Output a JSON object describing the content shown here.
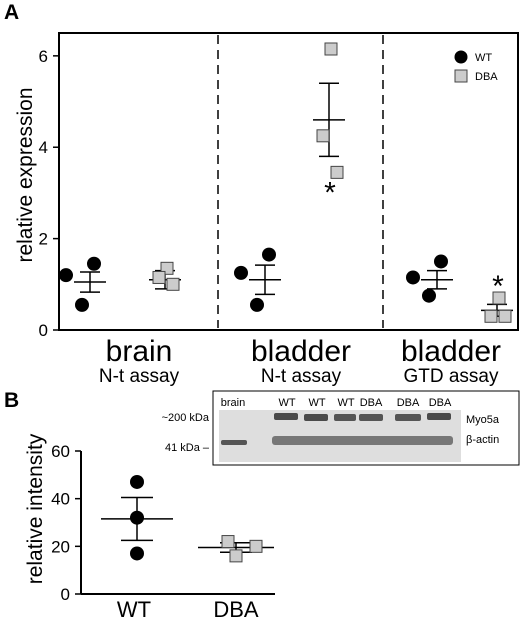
{
  "chart_data": [
    {
      "panel": "A",
      "type": "scatter",
      "ylabel": "relative expression",
      "ylim": [
        0,
        6.5
      ],
      "yticks": [
        0,
        2,
        4,
        6
      ],
      "legend": {
        "placement": "top-right",
        "entries": [
          {
            "label": "WT",
            "marker": "circle",
            "color": "#000000"
          },
          {
            "label": "DBA",
            "marker": "square",
            "color": "#cccccc"
          }
        ]
      },
      "groups": [
        {
          "name": "brain",
          "subtitle": "N-t assay",
          "series": [
            {
              "name": "WT",
              "points": [
                1.45,
                1.2,
                0.55
              ],
              "mean": 1.05,
              "sem": 0.22
            },
            {
              "name": "DBA",
              "points": [
                1.35,
                1.15,
                1.0
              ],
              "mean": 1.1,
              "sem": 0.2
            }
          ]
        },
        {
          "name": "bladder",
          "subtitle": "N-t assay",
          "series": [
            {
              "name": "WT",
              "points": [
                1.65,
                1.25,
                0.55
              ],
              "mean": 1.1,
              "sem": 0.32
            },
            {
              "name": "DBA",
              "points": [
                6.15,
                4.25,
                3.45
              ],
              "mean": 4.6,
              "sem": 0.8,
              "annotation": "*"
            }
          ]
        },
        {
          "name": "bladder",
          "subtitle": "GTD assay",
          "series": [
            {
              "name": "WT",
              "points": [
                1.5,
                1.15,
                0.75
              ],
              "mean": 1.1,
              "sem": 0.2
            },
            {
              "name": "DBA",
              "points": [
                0.7,
                0.3,
                0.3
              ],
              "mean": 0.43,
              "sem": 0.13,
              "annotation": "*"
            }
          ]
        }
      ]
    },
    {
      "panel": "B",
      "type": "scatter",
      "ylabel": "relative intensity",
      "ylim": [
        0,
        60
      ],
      "yticks": [
        0,
        20,
        40,
        60
      ],
      "categories": [
        "WT",
        "DBA"
      ],
      "series": [
        {
          "name": "WT",
          "marker": "circle",
          "color": "#000000",
          "points": [
            47,
            32,
            17
          ],
          "mean": 31.5,
          "sem": 9
        },
        {
          "name": "DBA",
          "marker": "square",
          "color": "#cccccc",
          "points": [
            22,
            20,
            16
          ],
          "mean": 19.5,
          "sem": 2
        }
      ]
    }
  ],
  "blot": {
    "lanes": [
      "brain",
      "WT",
      "WT",
      "WT",
      "DBA",
      "DBA",
      "DBA"
    ],
    "marker_labels": [
      "~200 kDa",
      "41 kDa –"
    ],
    "band_labels": [
      "Myo5a",
      "β-actin"
    ]
  }
}
